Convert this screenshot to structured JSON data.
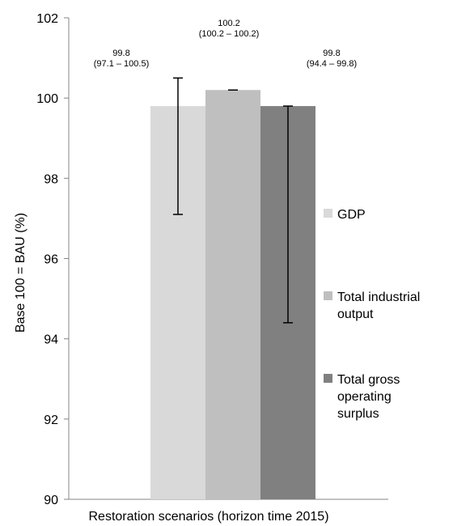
{
  "chart_data": {
    "type": "bar",
    "categories": [
      "Restoration scenarios (horizon time 2015)"
    ],
    "xlabel": "Restoration scenarios (horizon time 2015)",
    "ylabel": "Base 100 = BAU (%)",
    "ylim": [
      90,
      102
    ],
    "yticks": [
      "90",
      "92",
      "94",
      "96",
      "98",
      "100",
      "102"
    ],
    "grid": false,
    "legend_position": "right",
    "series": [
      {
        "name": "GDP",
        "color": "#d9d9d9",
        "value": 99.8,
        "err_low": 97.1,
        "err_high": 100.5,
        "label_main": "99.8",
        "label_range": "(97.1 – 100.5)"
      },
      {
        "name": "Total industrial output",
        "legend_lines": [
          "Total industrial",
          "output"
        ],
        "color": "#bfbfbf",
        "value": 100.2,
        "err_low": 100.2,
        "err_high": 100.2,
        "label_main": "100.2",
        "label_range": "(100.2 – 100.2)"
      },
      {
        "name": "Total gross operating surplus",
        "legend_lines": [
          "Total gross",
          "operating",
          "surplus"
        ],
        "color": "#808080",
        "value": 99.8,
        "err_low": 94.4,
        "err_high": 99.8,
        "label_main": "99.8",
        "label_range": "(94.4 – 99.8)"
      }
    ]
  }
}
